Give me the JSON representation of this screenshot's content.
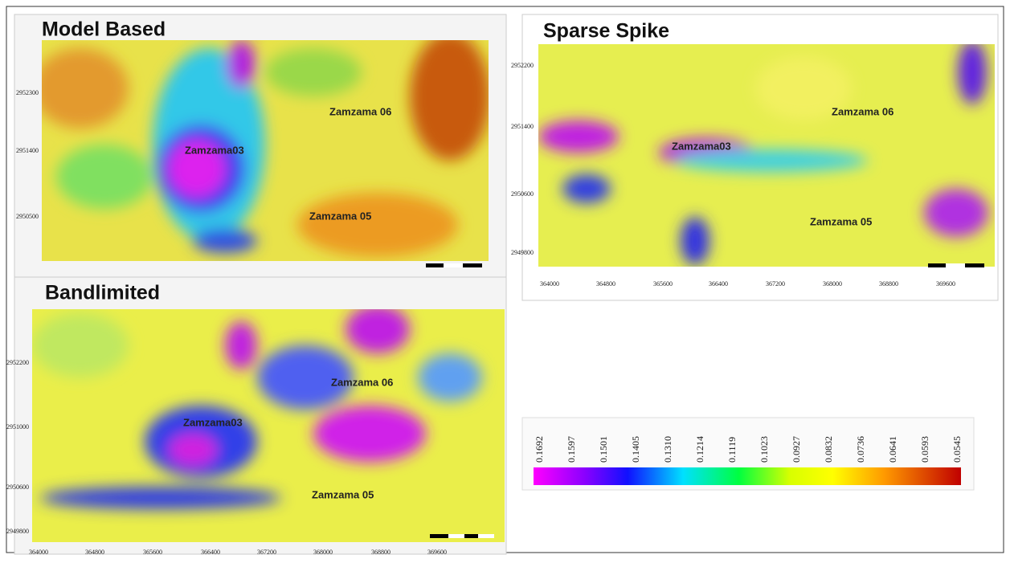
{
  "panels": [
    {
      "title": "Model Based",
      "wells": [
        "Zamzama 06",
        "Zamzama03",
        "Zamzama 05"
      ],
      "y_labels": [
        "2952300",
        "2951400",
        "2950500"
      ],
      "x_labels": []
    },
    {
      "title": "Sparse Spike",
      "wells": [
        "Zamzama 06",
        "Zamzama03",
        "Zamzama 05"
      ],
      "y_labels": [
        "2952200",
        "2951400",
        "2950600",
        "2949800"
      ],
      "x_labels": [
        "364000",
        "364800",
        "365600",
        "366400",
        "367200",
        "368000",
        "368800",
        "369600"
      ]
    },
    {
      "title": "Bandlimited",
      "wells": [
        "Zamzama 06",
        "Zamzama03",
        "Zamzama 05"
      ],
      "y_labels": [
        "2952200",
        "2951000",
        "2950600",
        "2949800"
      ],
      "x_labels": [
        "364000",
        "364800",
        "365600",
        "366400",
        "367200",
        "368000",
        "368800",
        "369600"
      ]
    }
  ],
  "colorbar": {
    "labels": [
      "0.1692",
      "0.1597",
      "0.1501",
      "0.1405",
      "0.1310",
      "0.1214",
      "0.1119",
      "0.1023",
      "0.0927",
      "0.0832",
      "0.0736",
      "0.0641",
      "0.0593",
      "0.0545"
    ]
  }
}
